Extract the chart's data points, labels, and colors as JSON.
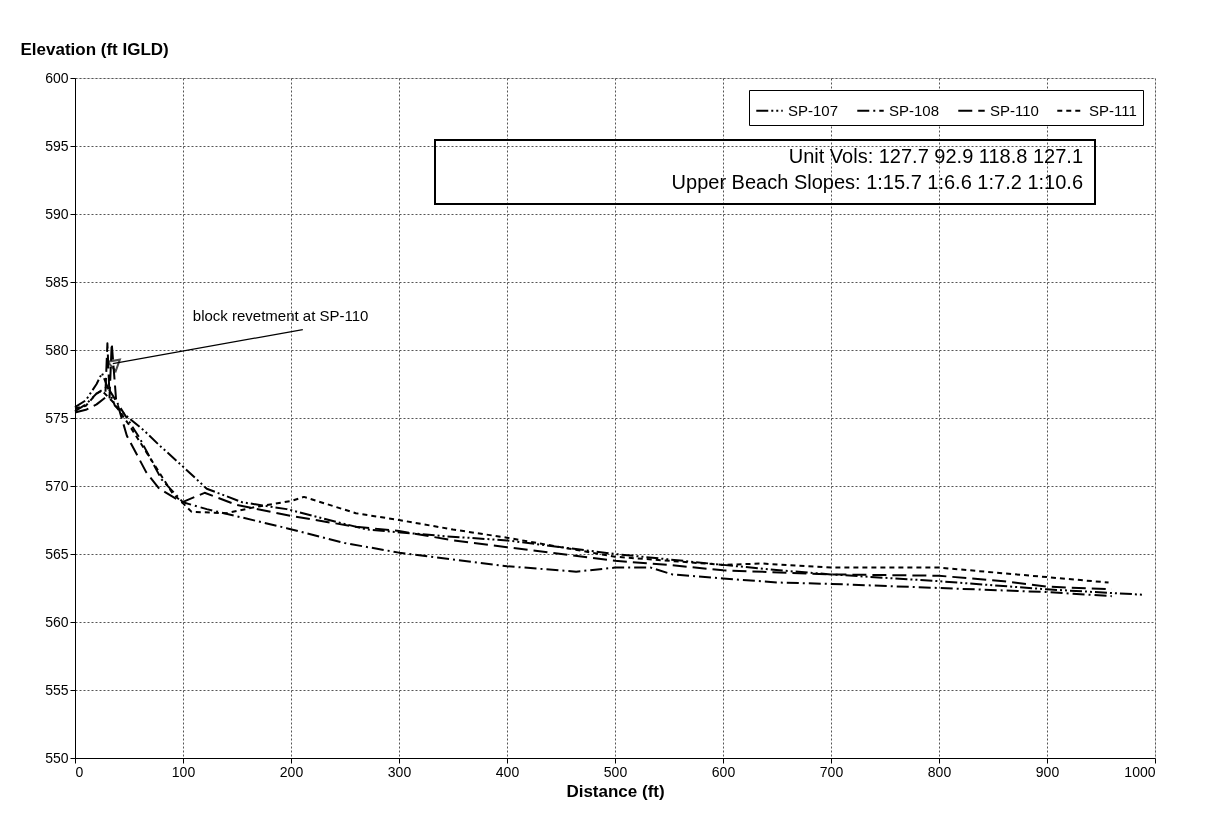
{
  "chart_data": {
    "type": "line",
    "xlabel": "Distance (ft)",
    "ylabel": "Elevation (ft IGLD)",
    "xlim": [
      0,
      1000
    ],
    "xticks": [
      0,
      100,
      200,
      300,
      400,
      500,
      600,
      700,
      800,
      900,
      1000
    ],
    "ylim": [
      550,
      600
    ],
    "yticks": [
      550,
      555,
      560,
      565,
      570,
      575,
      580,
      585,
      590,
      595,
      600
    ],
    "grid": true,
    "legend": "top right",
    "series": [
      {
        "name": "SP-107",
        "color": "#000000",
        "line_style": "dashdotdot",
        "x": [
          0,
          10,
          20,
          25,
          37,
          50,
          65,
          78,
          99,
          122,
          155,
          196,
          270,
          344,
          400,
          500,
          600,
          652,
          700,
          800,
          900,
          990
        ],
        "values": [
          575.8,
          576.3,
          577.5,
          578.3,
          575.9,
          575,
          574,
          573,
          571.5,
          569.8,
          568.8,
          568.3,
          566.8,
          566.3,
          566,
          565,
          564.2,
          563.8,
          563.5,
          563,
          562.4,
          562
        ]
      },
      {
        "name": "SP-108",
        "color": "#000000",
        "line_style": "dashdot",
        "x": [
          0,
          10,
          20,
          30,
          40,
          60,
          80,
          100,
          122,
          196,
          250,
          300,
          400,
          464,
          500,
          533,
          553,
          600,
          652,
          700,
          800,
          900,
          960
        ],
        "values": [
          575.5,
          576,
          576.8,
          577.3,
          576,
          573.5,
          570.5,
          568.8,
          568.3,
          566.9,
          565.8,
          565.1,
          564.1,
          563.7,
          564,
          564,
          563.5,
          563.2,
          562.9,
          562.8,
          562.5,
          562.2,
          561.9
        ]
      },
      {
        "name": "SP-110",
        "color": "#000000",
        "line_style": "dashed",
        "x": [
          0,
          10,
          20,
          28,
          30,
          32,
          34,
          38,
          48,
          66,
          78,
          99,
          120,
          150,
          200,
          260,
          300,
          350,
          400,
          500,
          550,
          600,
          700,
          800,
          860,
          900,
          960
        ],
        "values": [
          575.4,
          575.6,
          576,
          576.5,
          580.5,
          576.5,
          580.5,
          576.4,
          573.7,
          571,
          569.8,
          568.8,
          569.5,
          568.6,
          567.8,
          567,
          566.7,
          566,
          565.5,
          564.5,
          564.2,
          563.8,
          563.5,
          563.4,
          563,
          562.6,
          562.4
        ]
      },
      {
        "name": "SP-111",
        "color": "#000000",
        "line_style": "dotted",
        "x": [
          0,
          10,
          20,
          25,
          35,
          50,
          70,
          90,
          108,
          140,
          170,
          200,
          212,
          260,
          300,
          350,
          400,
          500,
          600,
          636,
          700,
          800,
          900,
          957
        ],
        "values": [
          575.7,
          575.9,
          576.8,
          577,
          576.2,
          574.5,
          572,
          569.5,
          568.1,
          568,
          568.5,
          568.9,
          569.2,
          568,
          567.5,
          566.8,
          566.2,
          564.8,
          564.2,
          564.3,
          564,
          564,
          563.3,
          562.9
        ]
      }
    ],
    "annotations": [
      "Unit Vols:  127.7   92.9   118.8   127.1",
      "Upper Beach Slopes:  1:15.7  1:6.6  1:7.2  1:10.6",
      {
        "text": "block revetment at SP-110",
        "x": 35,
        "y": 579
      }
    ]
  }
}
